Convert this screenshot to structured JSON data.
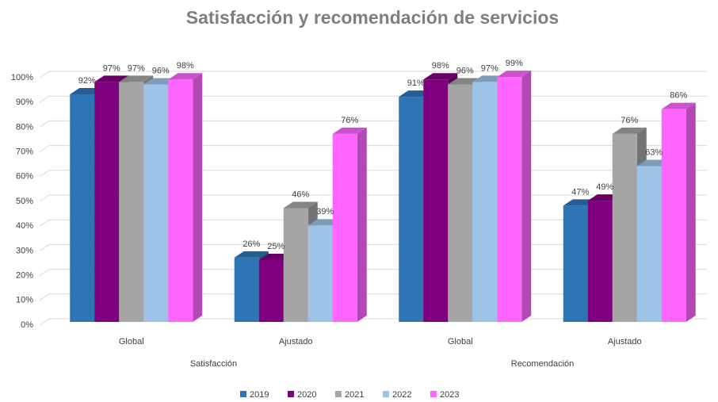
{
  "chart_data": {
    "type": "bar3d",
    "title": "Satisfacción y recomendación de servicios",
    "categories": [
      "Global",
      "Ajustado",
      "Global",
      "Ajustado"
    ],
    "groups": [
      "Satisfacción",
      "Recomendación"
    ],
    "series": [
      {
        "name": "2019",
        "color": "#2e75b6",
        "values": [
          92,
          26,
          91,
          47
        ],
        "value_labels": [
          "92%",
          "26%",
          "91%",
          "47%"
        ]
      },
      {
        "name": "2020",
        "color": "#7f007f",
        "values": [
          97,
          25,
          98,
          49
        ],
        "value_labels": [
          "97%",
          "25%",
          "98%",
          "49%"
        ]
      },
      {
        "name": "2021",
        "color": "#a5a5a5",
        "values": [
          97,
          46,
          96,
          76
        ],
        "value_labels": [
          "97%",
          "46%",
          "96%",
          "76%"
        ]
      },
      {
        "name": "2022",
        "color": "#9dc3e6",
        "values": [
          96,
          39,
          97,
          63
        ],
        "value_labels": [
          "96%",
          "39%",
          "97%",
          "63%"
        ]
      },
      {
        "name": "2023",
        "color": "#ff66ff",
        "values": [
          98,
          76,
          99,
          86
        ],
        "value_labels": [
          "98%",
          "76%",
          "99%",
          "86%"
        ]
      }
    ],
    "ylim": [
      0,
      100
    ],
    "yticks": [
      {
        "value": 0,
        "label": "0%"
      },
      {
        "value": 10,
        "label": "10%"
      },
      {
        "value": 20,
        "label": "20%"
      },
      {
        "value": 30,
        "label": "30%"
      },
      {
        "value": 40,
        "label": "40%"
      },
      {
        "value": 50,
        "label": "50%"
      },
      {
        "value": 60,
        "label": "60%"
      },
      {
        "value": 70,
        "label": "70%"
      },
      {
        "value": 80,
        "label": "80%"
      },
      {
        "value": 90,
        "label": "90%"
      },
      {
        "value": 100,
        "label": "100%"
      }
    ],
    "grid": true,
    "legend": "bottom"
  }
}
